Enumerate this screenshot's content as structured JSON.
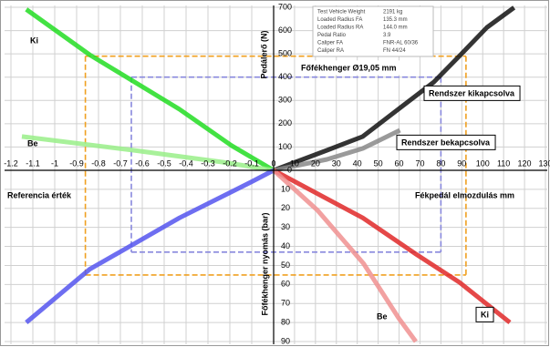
{
  "chart_data": {
    "type": "line",
    "grid": true,
    "x_right": {
      "label": "Fékpedál elmozdulás  mm",
      "lim": [
        0,
        130
      ],
      "ticks": [
        0,
        10,
        20,
        30,
        40,
        50,
        60,
        70,
        80,
        90,
        100,
        110,
        120,
        130
      ]
    },
    "x_left": {
      "label": "Referencia érték",
      "lim": [
        0,
        -1.2
      ],
      "ticks": [
        -1.2,
        -1.1,
        -1,
        -0.9,
        -0.8,
        -0.7,
        -0.6,
        -0.5,
        -0.4,
        -0.3,
        -0.2,
        -0.1
      ]
    },
    "y_up": {
      "label": "Pedálerő (N)",
      "lim": [
        0,
        700
      ],
      "ticks": [
        0,
        100,
        200,
        300,
        400,
        500,
        600,
        700
      ]
    },
    "y_down": {
      "label": "Főfékhenger nyomás (bar)",
      "lim": [
        0,
        90
      ],
      "ticks": [
        10,
        20,
        30,
        40,
        50,
        60,
        70,
        80,
        90
      ]
    },
    "annotation": "Főfékhenger  Ø19,05 mm",
    "info": [
      [
        "Test Vehicle Weight",
        "2191 kg"
      ],
      [
        "Loaded Radius FA",
        "135.3 mm"
      ],
      [
        "Loaded Radius RA",
        "144.0 mm"
      ],
      [
        "Pedal Ratio",
        "3.9"
      ],
      [
        "Caliper FA",
        "FNR-AL 60/36"
      ],
      [
        "Caliper RA",
        "FN 44/24"
      ]
    ],
    "series": [
      {
        "name": "Rendszer kikapcsolva",
        "color": "#111111",
        "quadrant": "upper-right",
        "x": [
          0,
          25.5,
          42.6,
          59.6,
          76.6,
          89.4,
          102,
          115
        ],
        "values": [
          0,
          86,
          145,
          262,
          379,
          496,
          613,
          699
        ]
      },
      {
        "name": "Rendszer bekapcsolva",
        "color": "#888888",
        "quadrant": "upper-right",
        "x": [
          0,
          25.5,
          42.6,
          60.4
        ],
        "values": [
          0,
          47,
          94,
          172
        ]
      },
      {
        "name": "Ki",
        "color": "#22dd22",
        "quadrant": "upper-left",
        "x": [
          0,
          -0.19,
          -0.43,
          -0.84,
          -1.13
        ],
        "values": [
          0,
          105,
          262,
          496,
          691
        ]
      },
      {
        "name": "Be",
        "color": "#99ee88",
        "quadrant": "upper-left",
        "x": [
          0,
          -0.23,
          -0.64,
          -1.15
        ],
        "values": [
          0,
          35,
          86,
          145
        ]
      },
      {
        "color": "#5555ee",
        "quadrant": "lower-left",
        "x": [
          0,
          -0.1,
          -0.43,
          -0.84,
          -1.13
        ],
        "values": [
          0,
          6,
          25,
          52,
          80
        ]
      },
      {
        "name": "Ki",
        "color": "#e02828",
        "quadrant": "lower-right",
        "x": [
          0,
          42.6,
          68,
          89,
          113
        ],
        "values": [
          0,
          25,
          44,
          59,
          80
        ]
      },
      {
        "name": "Be",
        "color": "#f09090",
        "quadrant": "lower-right",
        "x": [
          0,
          21,
          43,
          60,
          68
        ],
        "values": [
          0,
          21,
          49,
          78,
          90
        ]
      }
    ],
    "guides": [
      {
        "color": "#f0a020",
        "ref": -0.86,
        "force": 490,
        "travel": 92,
        "pressure": 55
      },
      {
        "color": "#8888dd",
        "ref": -0.65,
        "force": 400,
        "travel": 80,
        "pressure": 43
      }
    ]
  }
}
